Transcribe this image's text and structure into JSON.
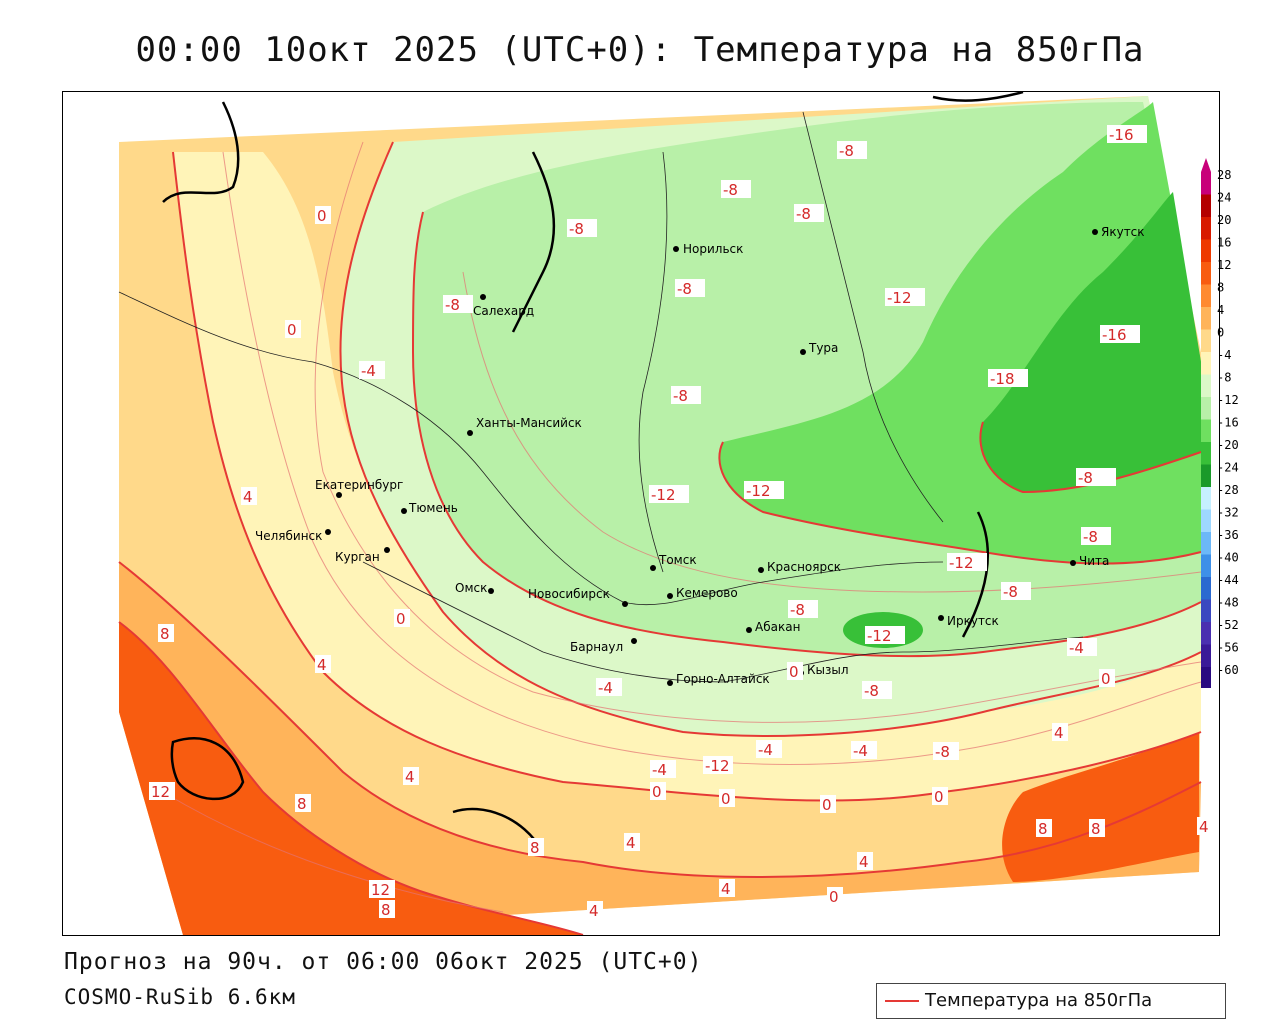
{
  "title": "00:00 10окт 2025 (UTC+0): Температура на 850гПа",
  "footer": {
    "forecast": "Прогноз на 90ч. от 06:00 06окт 2025 (UTC+0)",
    "model": "COSMO-RuSib 6.6км"
  },
  "legend": {
    "label": "Температура на 850гПа",
    "line_color": "#e53935"
  },
  "colorbar": {
    "labels": [
      "28",
      "24",
      "20",
      "16",
      "12",
      "8",
      "4",
      "0",
      "-4",
      "-8",
      "-12",
      "-16",
      "-20",
      "-24",
      "-28",
      "-32",
      "-36",
      "-40",
      "-44",
      "-48",
      "-52",
      "-56",
      "-60"
    ],
    "colors": [
      "#c8007a",
      "#b40000",
      "#d81a00",
      "#ee3a00",
      "#f85c10",
      "#ff8a30",
      "#ffb45a",
      "#ffd98a",
      "#fff4b8",
      "#dcf8c8",
      "#b8f0a8",
      "#6fe060",
      "#38c038",
      "#1a9a2a",
      "#c6f0ff",
      "#9ed8ff",
      "#6cb8f8",
      "#3e90e8",
      "#2a6ad0",
      "#3a48c0",
      "#4a30b0",
      "#3a1a98",
      "#2a0a80",
      "#6a1aa8"
    ]
  },
  "cities": [
    {
      "name": "Норильск"
    },
    {
      "name": "Якутск"
    },
    {
      "name": "Салехард"
    },
    {
      "name": "Тура"
    },
    {
      "name": "Ханты-Мансийск"
    },
    {
      "name": "Екатеринбург"
    },
    {
      "name": "Тюмень"
    },
    {
      "name": "Челябинск"
    },
    {
      "name": "Курган"
    },
    {
      "name": "Омск"
    },
    {
      "name": "Томск"
    },
    {
      "name": "Новосибирск"
    },
    {
      "name": "Кемерово"
    },
    {
      "name": "Красноярск"
    },
    {
      "name": "Барнаул"
    },
    {
      "name": "Абакан"
    },
    {
      "name": "Иркутск"
    },
    {
      "name": "Чита"
    },
    {
      "name": "Горно-Алтайск"
    },
    {
      "name": "Кызыл"
    }
  ],
  "contour_labels": [
    "-16",
    "-8",
    "-8",
    "-8",
    "-8",
    "-8",
    "0",
    "-8",
    "-12",
    "-16",
    "-18",
    "-8",
    "0",
    "-4",
    "-8",
    "-12",
    "-12",
    "-12",
    "-12",
    "-8",
    "4",
    "0",
    "-8",
    "-12",
    "-8",
    "8",
    "4",
    "-4",
    "-4",
    "0",
    "4",
    "12",
    "8",
    "4",
    "-4",
    "-4",
    "-4",
    "-8",
    "0",
    "0",
    "0",
    "0",
    "4",
    "8",
    "8",
    "4",
    "8",
    "4",
    "4",
    "0",
    "12",
    "8",
    "4",
    "4",
    "-8",
    "0"
  ]
}
